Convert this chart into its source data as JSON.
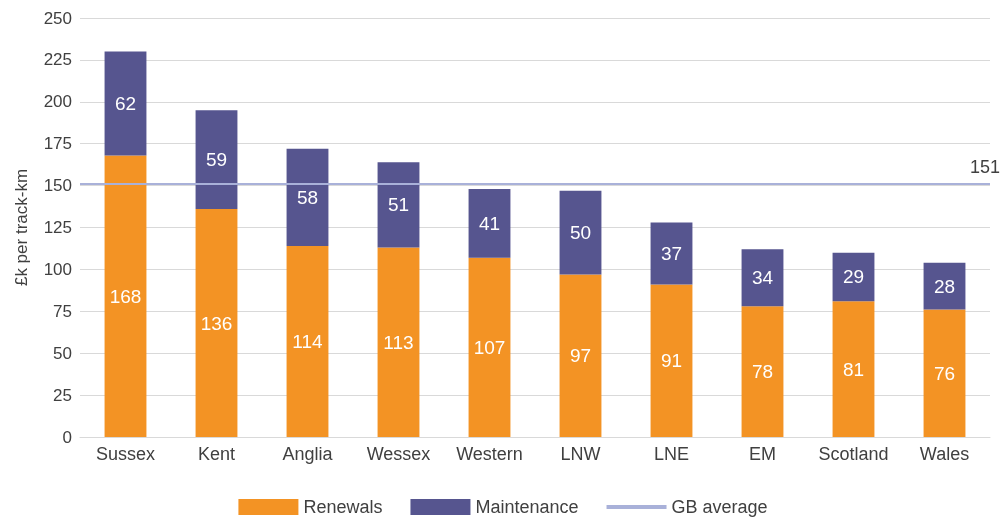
{
  "chart_data": {
    "type": "bar",
    "stacked": true,
    "ylabel": "£k per track-km",
    "categories": [
      "Sussex",
      "Kent",
      "Anglia",
      "Wessex",
      "Western",
      "LNW",
      "LNE",
      "EM",
      "Scotland",
      "Wales"
    ],
    "series": [
      {
        "name": "Renewals",
        "color": "#f39324",
        "values": [
          168,
          136,
          114,
          113,
          107,
          97,
          91,
          78,
          81,
          76
        ]
      },
      {
        "name": "Maintenance",
        "color": "#56558f",
        "values": [
          62,
          59,
          58,
          51,
          41,
          50,
          37,
          34,
          29,
          28
        ]
      }
    ],
    "ylim": [
      0,
      250
    ],
    "yticks": [
      0,
      25,
      50,
      75,
      100,
      125,
      150,
      175,
      200,
      225,
      250
    ],
    "grid": "y",
    "legend": "bottom",
    "data_labels": true,
    "ref_lines": [
      {
        "axis": "y",
        "value": 151,
        "label": "GB average",
        "color": "#a9b1d9"
      }
    ],
    "annotations": [
      {
        "text": "151",
        "y": 151
      }
    ]
  }
}
